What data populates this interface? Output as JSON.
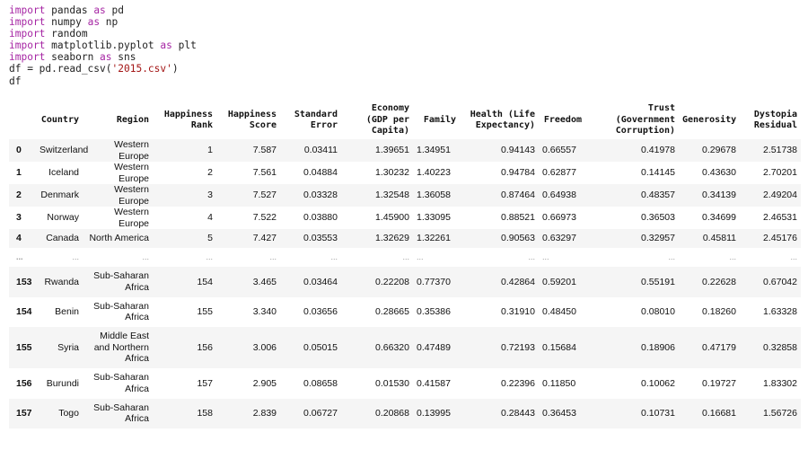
{
  "code": {
    "lines": [
      {
        "kw": "import",
        "rest": " pandas ",
        "kw2": "as",
        "rest2": " pd"
      },
      {
        "kw": "import",
        "rest": " numpy ",
        "kw2": "as",
        "rest2": " np"
      },
      {
        "kw": "import",
        "rest": " random",
        "kw2": "",
        "rest2": ""
      },
      {
        "kw": "import",
        "rest": " matplotlib.pyplot ",
        "kw2": "as",
        "rest2": " plt"
      },
      {
        "kw": "import",
        "rest": " seaborn ",
        "kw2": "as",
        "rest2": " sns"
      }
    ],
    "read_prefix": "df = pd.read_csv(",
    "read_arg": "'2015.csv'",
    "read_suffix": ")",
    "last_line": "df"
  },
  "table": {
    "columns": [
      "",
      "Country",
      "Region",
      "Happiness Rank",
      "Happiness Score",
      "Standard Error",
      "Economy (GDP per Capita)",
      "Family",
      "Health (Life Expectancy)",
      "Freedom",
      "Trust (Government Corruption)",
      "Generosity",
      "Dystopia Residual"
    ],
    "rows": [
      [
        "0",
        "Switzerland",
        "Western Europe",
        "1",
        "7.587",
        "0.03411",
        "1.39651",
        "1.34951",
        "0.94143",
        "0.66557",
        "0.41978",
        "0.29678",
        "2.51738"
      ],
      [
        "1",
        "Iceland",
        "Western Europe",
        "2",
        "7.561",
        "0.04884",
        "1.30232",
        "1.40223",
        "0.94784",
        "0.62877",
        "0.14145",
        "0.43630",
        "2.70201"
      ],
      [
        "2",
        "Denmark",
        "Western Europe",
        "3",
        "7.527",
        "0.03328",
        "1.32548",
        "1.36058",
        "0.87464",
        "0.64938",
        "0.48357",
        "0.34139",
        "2.49204"
      ],
      [
        "3",
        "Norway",
        "Western Europe",
        "4",
        "7.522",
        "0.03880",
        "1.45900",
        "1.33095",
        "0.88521",
        "0.66973",
        "0.36503",
        "0.34699",
        "2.46531"
      ],
      [
        "4",
        "Canada",
        "North America",
        "5",
        "7.427",
        "0.03553",
        "1.32629",
        "1.32261",
        "0.90563",
        "0.63297",
        "0.32957",
        "0.45811",
        "2.45176"
      ],
      [
        "...",
        "...",
        "...",
        "...",
        "...",
        "...",
        "...",
        "...",
        "...",
        "...",
        "...",
        "...",
        "..."
      ],
      [
        "153",
        "Rwanda",
        "Sub-Saharan Africa",
        "154",
        "3.465",
        "0.03464",
        "0.22208",
        "0.77370",
        "0.42864",
        "0.59201",
        "0.55191",
        "0.22628",
        "0.67042"
      ],
      [
        "154",
        "Benin",
        "Sub-Saharan Africa",
        "155",
        "3.340",
        "0.03656",
        "0.28665",
        "0.35386",
        "0.31910",
        "0.48450",
        "0.08010",
        "0.18260",
        "1.63328"
      ],
      [
        "155",
        "Syria",
        "Middle East and Northern Africa",
        "156",
        "3.006",
        "0.05015",
        "0.66320",
        "0.47489",
        "0.72193",
        "0.15684",
        "0.18906",
        "0.47179",
        "0.32858"
      ],
      [
        "156",
        "Burundi",
        "Sub-Saharan Africa",
        "157",
        "2.905",
        "0.08658",
        "0.01530",
        "0.41587",
        "0.22396",
        "0.11850",
        "0.10062",
        "0.19727",
        "1.83302"
      ],
      [
        "157",
        "Togo",
        "Sub-Saharan Africa",
        "158",
        "2.839",
        "0.06727",
        "0.20868",
        "0.13995",
        "0.28443",
        "0.36453",
        "0.10731",
        "0.16681",
        "1.56726"
      ]
    ]
  }
}
